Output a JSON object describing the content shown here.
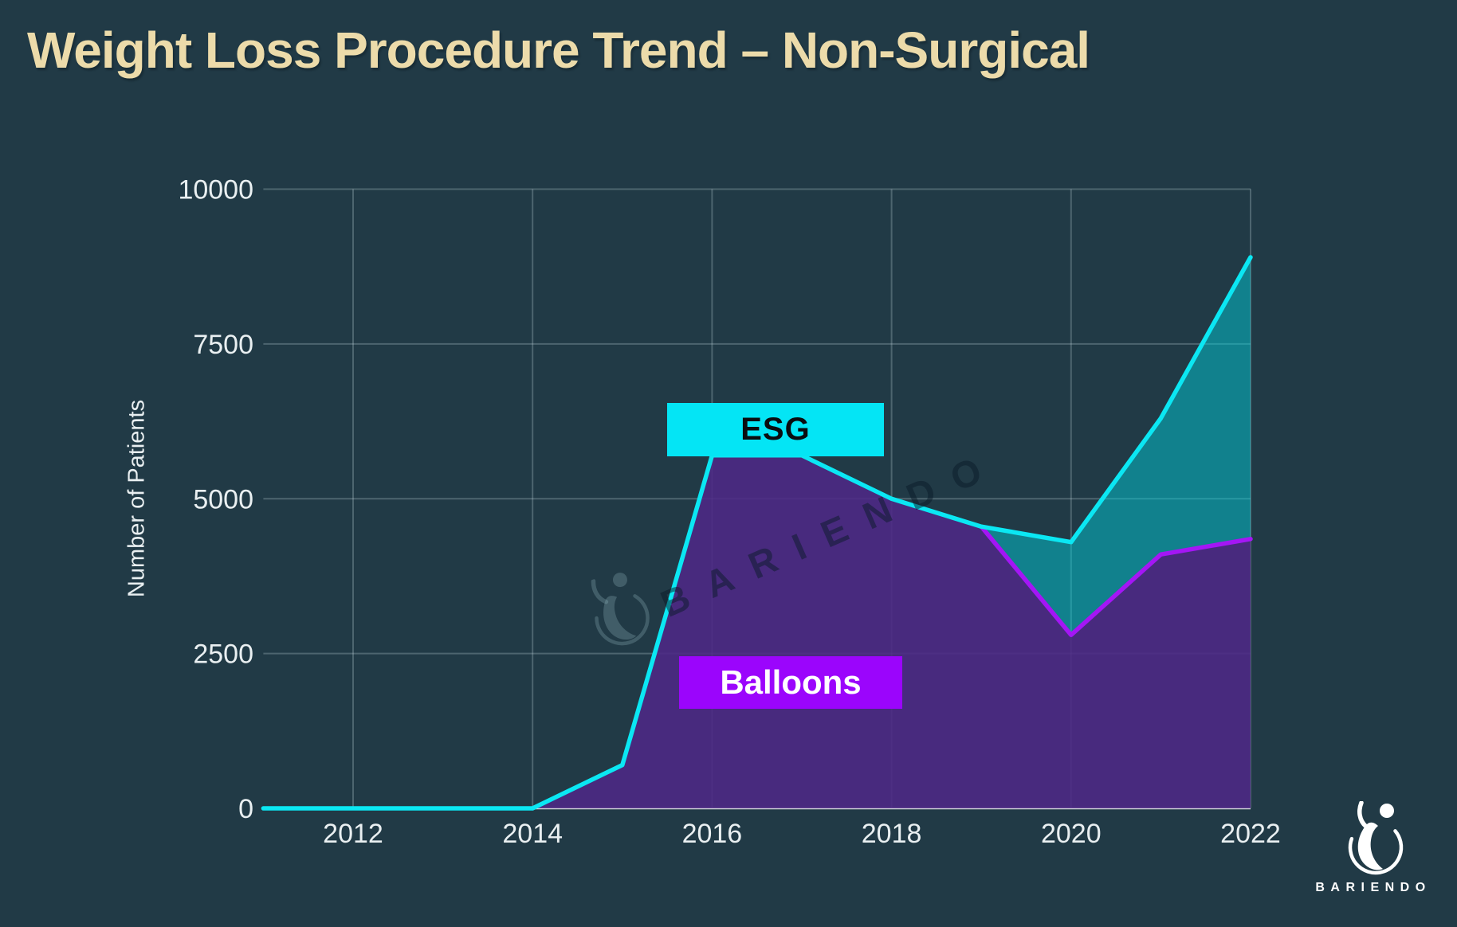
{
  "title": "Weight Loss Procedure Trend – Non-Surgical",
  "y_axis": {
    "title": "Number of Patients",
    "tick_values": [
      0,
      2500,
      5000,
      7500,
      10000
    ],
    "tick_labels": [
      "0",
      "2500",
      "5000",
      "7500",
      "10000"
    ]
  },
  "x_axis": {
    "tick_values": [
      2012,
      2014,
      2016,
      2018,
      2020,
      2022
    ],
    "tick_labels": [
      "2012",
      "2014",
      "2016",
      "2018",
      "2020",
      "2022"
    ]
  },
  "labels": {
    "esg": "ESG",
    "balloons": "Balloons"
  },
  "watermark_text": "BARIENDO",
  "logo_text": "BARIENDO",
  "colors": {
    "background": "#213a46",
    "title": "#ecdbaa",
    "tick_text": "#e9eff1",
    "grid": "rgba(205,225,232,0.26)",
    "zero_line": "rgba(255,255,255,0.8)",
    "esg_line": "#0be7f3",
    "esg_fill": "rgba(0,210,220,0.47)",
    "balloons_line": "#a416f5",
    "balloons_fill": "rgba(77,40,134,0.88)",
    "esg_box_bg": "#04e5f5",
    "esg_box_text": "#0a0d10",
    "balloons_box_bg": "#9b05fc",
    "balloons_box_text": "#ffffff",
    "watermark": "rgba(10,26,40,0.5)",
    "watermark_glyph": "rgba(150,185,195,0.28)",
    "logo": "#ffffff"
  },
  "chart_data": {
    "type": "area",
    "title": "Weight Loss Procedure Trend – Non-Surgical",
    "xlabel": "",
    "ylabel": "Number of Patients",
    "x": [
      2011,
      2012,
      2013,
      2014,
      2015,
      2016,
      2017,
      2018,
      2019,
      2020,
      2021,
      2022
    ],
    "series": [
      {
        "name": "ESG",
        "values": [
          0,
          0,
          0,
          0,
          700,
          5700,
          5700,
          5000,
          4550,
          4300,
          6300,
          8900
        ]
      },
      {
        "name": "Balloons",
        "values": [
          0,
          0,
          0,
          0,
          700,
          5700,
          5700,
          5000,
          4550,
          2800,
          4100,
          4350
        ]
      }
    ],
    "ylim": [
      0,
      10000
    ],
    "xlim": [
      2011,
      2022
    ],
    "grid": true,
    "legend_position": "inline-labels-on-chart"
  }
}
